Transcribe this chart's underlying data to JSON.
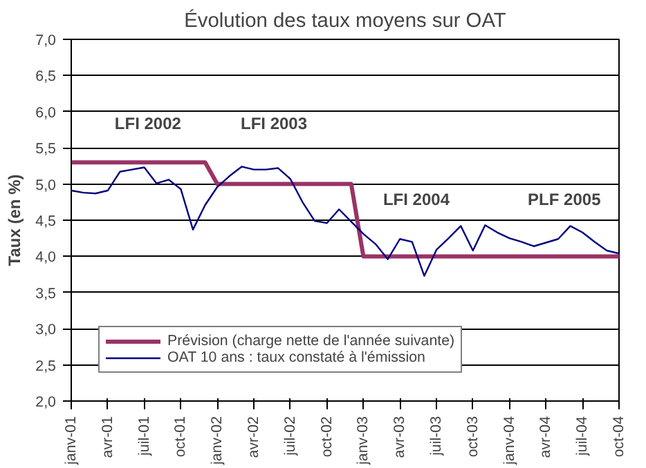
{
  "chart_data": {
    "type": "line",
    "title": "Évolution des taux moyens sur OAT",
    "ylabel": "Taux (en %)",
    "categories": [
      "janv-01",
      null,
      null,
      "avr-01",
      null,
      null,
      "juil-01",
      null,
      null,
      "oct-01",
      null,
      null,
      "janv-02",
      null,
      null,
      "avr-02",
      null,
      null,
      "juil-02",
      null,
      null,
      "oct-02",
      null,
      null,
      "janv-03",
      null,
      null,
      "avr-03",
      null,
      null,
      "juil-03",
      null,
      null,
      "oct-03",
      null,
      null,
      "janv-04",
      null,
      null,
      "avr-04",
      null,
      null,
      "juil-04",
      null,
      null,
      "oct-04"
    ],
    "series": [
      {
        "name": "Prévision (charge nette de l'année suivante)",
        "color": "#993366",
        "values": [
          5.3,
          5.3,
          5.3,
          5.3,
          5.3,
          5.3,
          5.3,
          5.3,
          5.3,
          5.3,
          5.3,
          5.3,
          5.0,
          5.0,
          5.0,
          5.0,
          5.0,
          5.0,
          5.0,
          5.0,
          5.0,
          5.0,
          5.0,
          5.0,
          4.0,
          4.0,
          4.0,
          4.0,
          4.0,
          4.0,
          4.0,
          4.0,
          4.0,
          4.0,
          4.0,
          4.0,
          4.0,
          4.0,
          4.0,
          4.0,
          4.0,
          4.0,
          4.0,
          4.0,
          4.0,
          4.0
        ]
      },
      {
        "name": "OAT 10 ans : taux constaté à l'émission",
        "color": "#000080",
        "values": [
          4.91,
          4.88,
          4.87,
          4.91,
          5.17,
          5.2,
          5.23,
          5.01,
          5.06,
          4.93,
          4.37,
          4.71,
          4.96,
          5.11,
          5.24,
          5.2,
          5.2,
          5.22,
          5.07,
          4.75,
          4.49,
          4.46,
          4.65,
          4.48,
          4.31,
          4.17,
          3.96,
          4.24,
          4.2,
          3.73,
          4.09,
          4.25,
          4.42,
          4.08,
          4.43,
          4.33,
          4.25,
          4.2,
          4.14,
          4.19,
          4.24,
          4.42,
          4.33,
          4.2,
          4.08,
          4.04
        ]
      }
    ],
    "ylim": [
      2.0,
      7.0
    ],
    "yticks": [
      {
        "value": 2.0,
        "label": "2,0"
      },
      {
        "value": 2.5,
        "label": "2,5"
      },
      {
        "value": 3.0,
        "label": "3,0"
      },
      {
        "value": 3.5,
        "label": "3,5"
      },
      {
        "value": 4.0,
        "label": "4,0"
      },
      {
        "value": 4.5,
        "label": "4,5"
      },
      {
        "value": 5.0,
        "label": "5,0"
      },
      {
        "value": 5.5,
        "label": "5,5"
      },
      {
        "value": 6.0,
        "label": "6,0"
      },
      {
        "value": 6.5,
        "label": "6,5"
      },
      {
        "value": 7.0,
        "label": "7,0"
      }
    ],
    "grid": "y",
    "legend": "bottom left",
    "marker": "none",
    "line_style": "solid",
    "annotations": [
      "LFI 2002",
      "LFI 2003",
      "LFI 2004",
      "PLF 2005"
    ]
  }
}
